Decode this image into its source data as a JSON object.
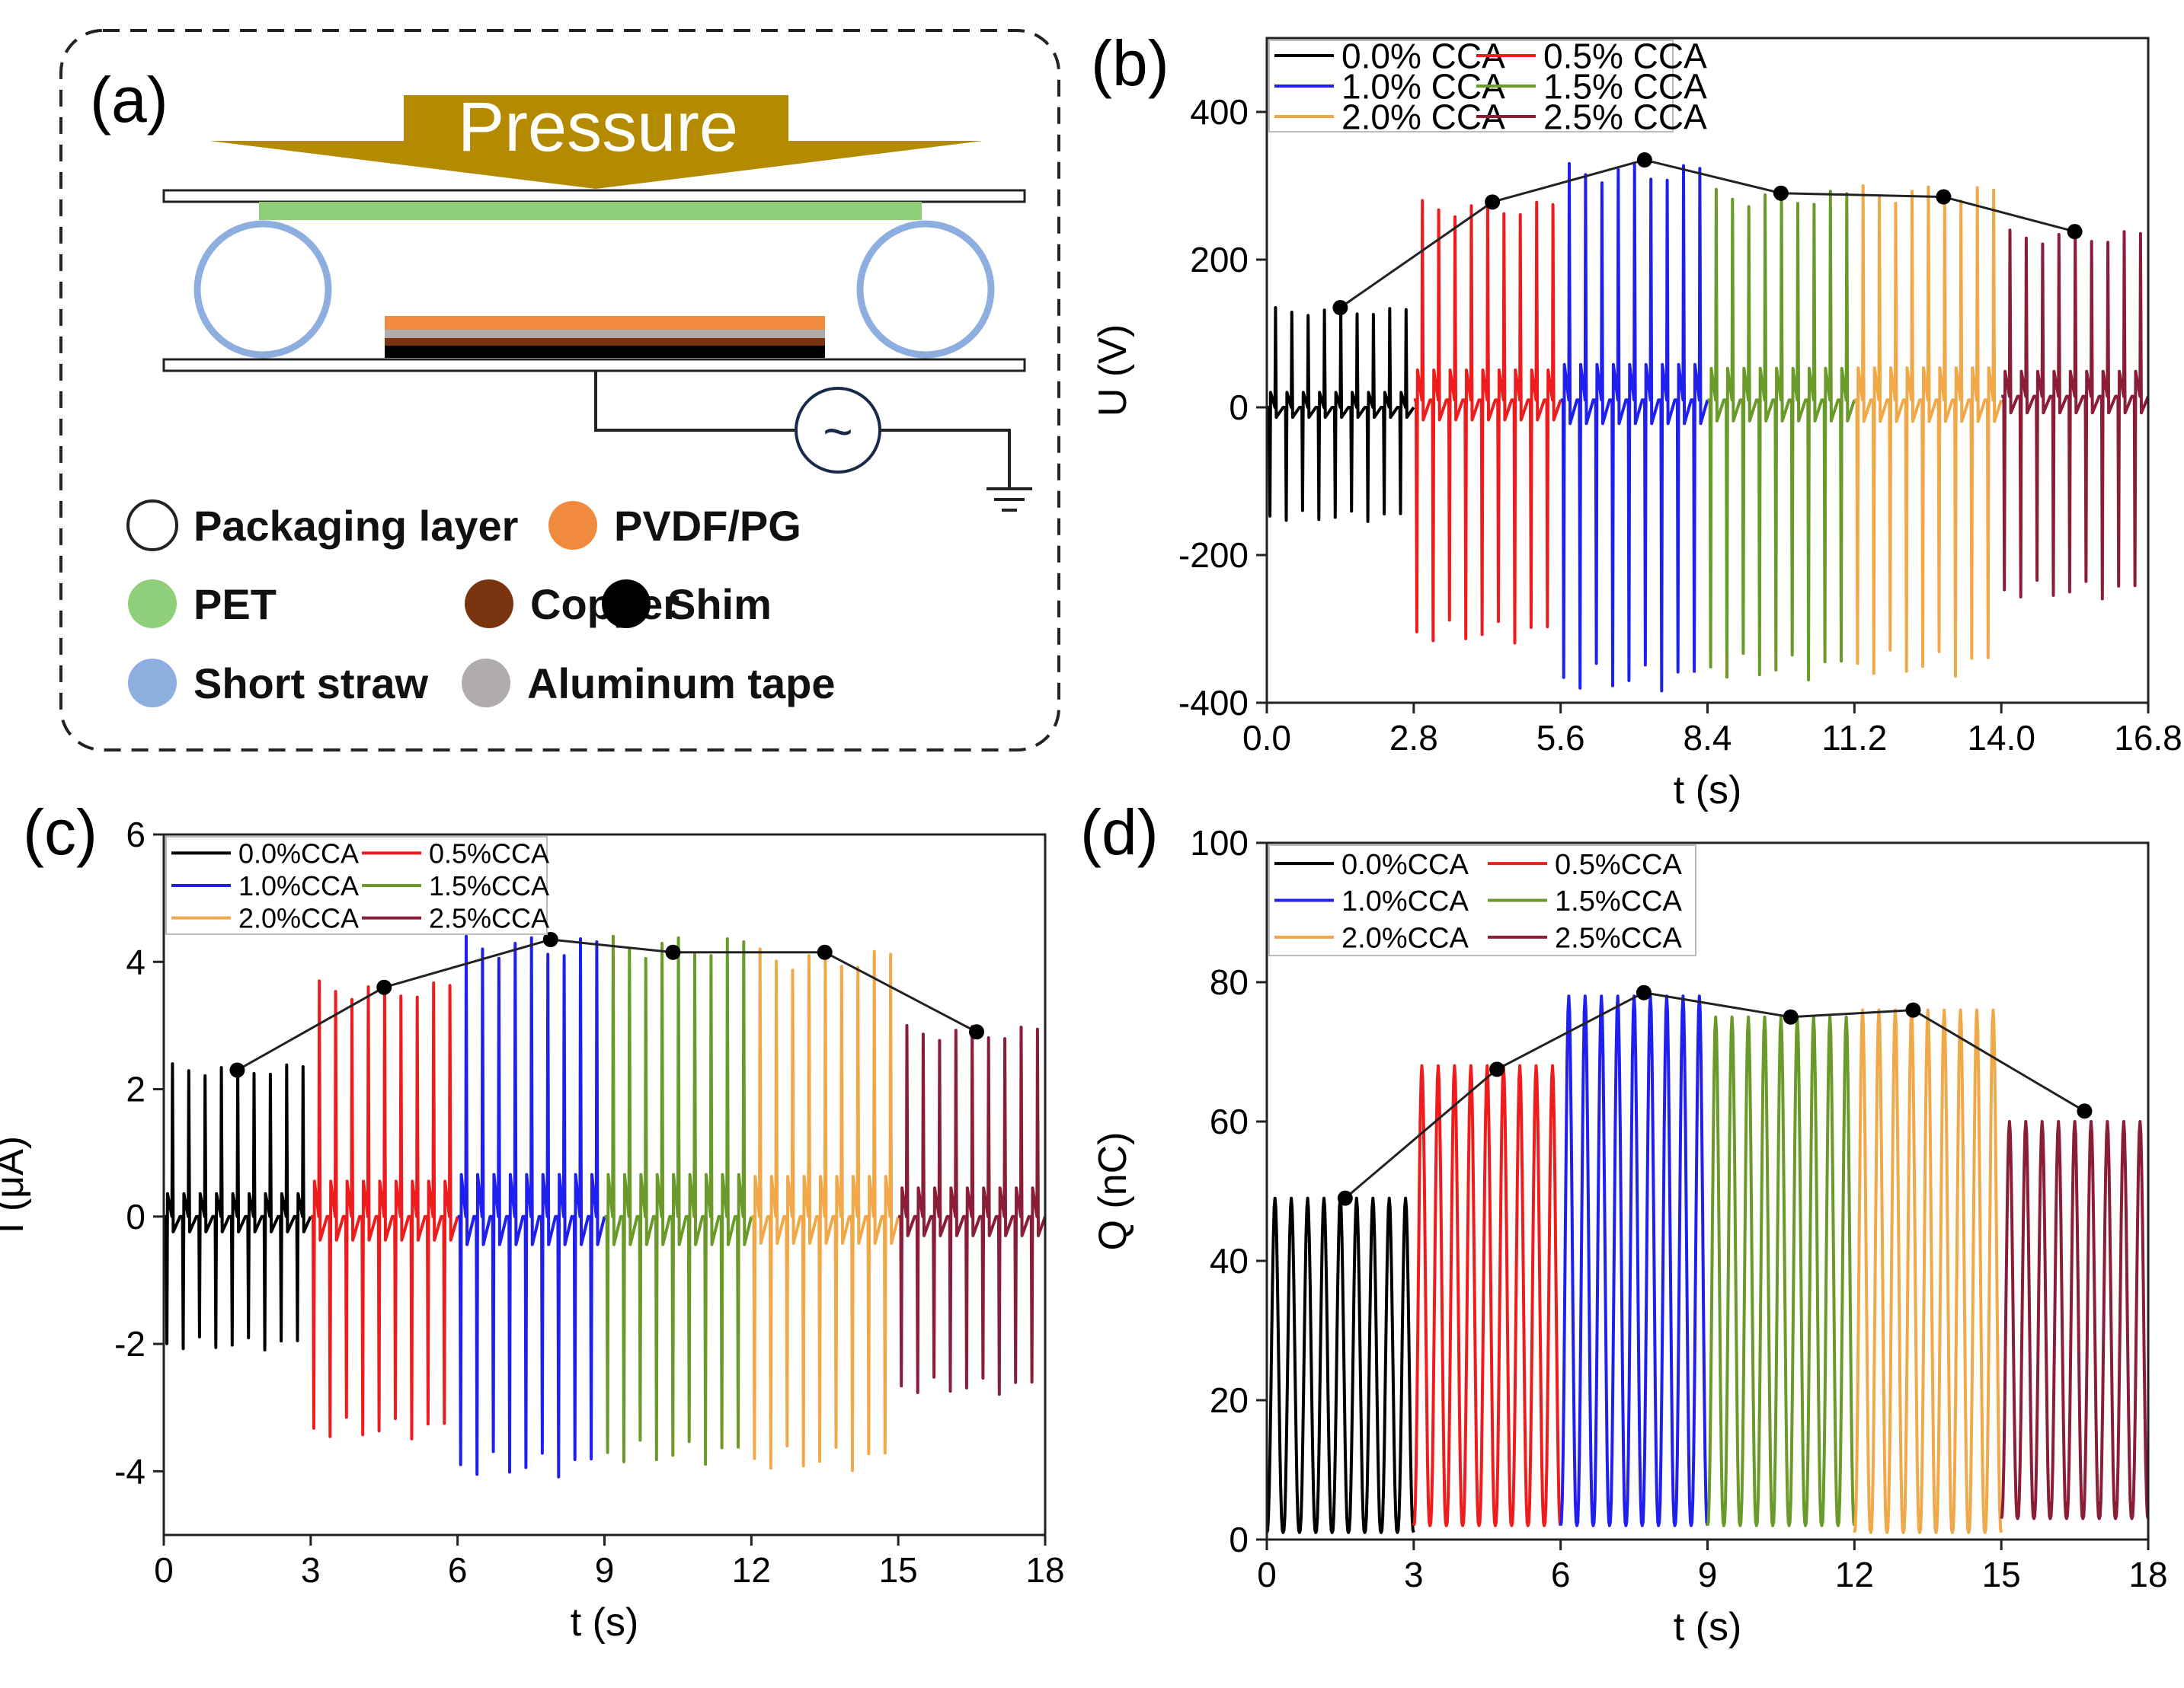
{
  "panel_a": {
    "panel_label": "(a)",
    "pressure_label": "Pressure",
    "source_symbol": "~",
    "legend": [
      {
        "label": "Packaging layer",
        "color": "#ffffff"
      },
      {
        "label": "PVDF/PG",
        "color": "#f08a3c"
      },
      {
        "label": "PET",
        "color": "#8fcf7a"
      },
      {
        "label": "Copper",
        "color": "#7a3510"
      },
      {
        "label": "Shim",
        "color": "#000000"
      },
      {
        "label": "Short straw",
        "color": "#8faee0"
      },
      {
        "label": "Aluminum tape",
        "color": "#b0acac"
      }
    ],
    "colors": {
      "arrow": "#b48a00",
      "pet": "#8fcf7a",
      "straw": "#8faee0",
      "pvdf": "#f08a3c",
      "aluminum": "#b0acac",
      "copper": "#7a3510",
      "shim": "#000000"
    }
  },
  "series_colors": [
    "#000000",
    "#ee1c1c",
    "#1f1fee",
    "#6a9a2a",
    "#f0a848",
    "#8a1e38"
  ],
  "chart_data": [
    {
      "id": "b",
      "panel_label": "(b)",
      "type": "line",
      "xlabel": "t (s)",
      "ylabel": "U (V)",
      "xlim": [
        0,
        16.8
      ],
      "ylim": [
        -400,
        500
      ],
      "xticks": [
        "0.0",
        "2.8",
        "5.6",
        "8.4",
        "11.2",
        "14.0",
        "16.8"
      ],
      "yticks": [
        "-400",
        "-200",
        "0",
        "200",
        "400"
      ],
      "legend": [
        "0.0% CCA",
        "0.5% CCA",
        "1.0% CCA",
        "1.5% CCA",
        "2.0% CCA",
        "2.5% CCA"
      ],
      "series": [
        {
          "name": "0.0% CCA",
          "t_range": [
            0,
            2.8
          ],
          "peak": 135,
          "trough": -155,
          "baseline": 0
        },
        {
          "name": "0.5% CCA",
          "t_range": [
            2.8,
            5.6
          ],
          "peak": 280,
          "trough": -320,
          "baseline": 10
        },
        {
          "name": "1.0% CCA",
          "t_range": [
            5.6,
            8.4
          ],
          "peak": 330,
          "trough": -385,
          "baseline": 10
        },
        {
          "name": "1.5% CCA",
          "t_range": [
            8.4,
            11.2
          ],
          "peak": 295,
          "trough": -370,
          "baseline": 10
        },
        {
          "name": "2.0% CCA",
          "t_range": [
            11.2,
            14.0
          ],
          "peak": 300,
          "trough": -365,
          "baseline": 10
        },
        {
          "name": "2.5% CCA",
          "t_range": [
            14.0,
            16.8
          ],
          "peak": 240,
          "trough": -260,
          "baseline": 15
        }
      ],
      "trend": {
        "x": [
          1.4,
          4.3,
          7.2,
          9.8,
          12.9,
          15.4
        ],
        "y": [
          135,
          278,
          335,
          290,
          285,
          238
        ]
      }
    },
    {
      "id": "c",
      "panel_label": "(c)",
      "type": "line",
      "xlabel": "t (s)",
      "ylabel": "I (μA)",
      "xlim": [
        0,
        18
      ],
      "ylim": [
        -5,
        6
      ],
      "xticks": [
        "0",
        "3",
        "6",
        "9",
        "12",
        "15",
        "18"
      ],
      "yticks": [
        "-4",
        "-2",
        "0",
        "2",
        "4",
        "6"
      ],
      "legend": [
        "0.0%CCA",
        "0.5%CCA",
        "1.0%CCA",
        "1.5%CCA",
        "2.0%CCA",
        "2.5%CCA"
      ],
      "series": [
        {
          "name": "0.0%CCA",
          "t_range": [
            0,
            3
          ],
          "peak": 2.4,
          "trough": -2.1,
          "baseline": 0
        },
        {
          "name": "0.5%CCA",
          "t_range": [
            3,
            6
          ],
          "peak": 3.7,
          "trough": -3.5,
          "baseline": 0
        },
        {
          "name": "1.0%CCA",
          "t_range": [
            6,
            9
          ],
          "peak": 4.4,
          "trough": -4.1,
          "baseline": 0
        },
        {
          "name": "1.5%CCA",
          "t_range": [
            9,
            12
          ],
          "peak": 4.4,
          "trough": -3.9,
          "baseline": 0
        },
        {
          "name": "2.0%CCA",
          "t_range": [
            12,
            15
          ],
          "peak": 4.2,
          "trough": -4.0,
          "baseline": 0
        },
        {
          "name": "2.5%CCA",
          "t_range": [
            15,
            18
          ],
          "peak": 3.0,
          "trough": -2.8,
          "baseline": 0
        }
      ],
      "trend": {
        "x": [
          1.5,
          4.5,
          7.9,
          10.4,
          13.5,
          16.6
        ],
        "y": [
          2.3,
          3.6,
          4.35,
          4.15,
          4.15,
          2.9
        ]
      }
    },
    {
      "id": "d",
      "panel_label": "(d)",
      "type": "line",
      "xlabel": "t (s)",
      "ylabel": "Q (nC)",
      "xlim": [
        0,
        18
      ],
      "ylim": [
        0,
        100
      ],
      "xticks": [
        "0",
        "3",
        "6",
        "9",
        "12",
        "15",
        "18"
      ],
      "yticks": [
        "0",
        "20",
        "40",
        "60",
        "80",
        "100"
      ],
      "legend": [
        "0.0%CCA",
        "0.5%CCA",
        "1.0%CCA",
        "1.5%CCA",
        "2.0%CCA",
        "2.5%CCA"
      ],
      "series": [
        {
          "name": "0.0%CCA",
          "t_range": [
            0,
            3
          ],
          "peak": 49,
          "trough": 1,
          "baseline": 1
        },
        {
          "name": "0.5%CCA",
          "t_range": [
            3,
            6
          ],
          "peak": 68,
          "trough": 2,
          "baseline": 2
        },
        {
          "name": "1.0%CCA",
          "t_range": [
            6,
            9
          ],
          "peak": 78,
          "trough": 2,
          "baseline": 2
        },
        {
          "name": "1.5%CCA",
          "t_range": [
            9,
            12
          ],
          "peak": 75,
          "trough": 2,
          "baseline": 2
        },
        {
          "name": "2.0%CCA",
          "t_range": [
            12,
            15
          ],
          "peak": 76,
          "trough": 1,
          "baseline": 1
        },
        {
          "name": "2.5%CCA",
          "t_range": [
            15,
            18
          ],
          "peak": 60,
          "trough": 3,
          "baseline": 3
        }
      ],
      "trend": {
        "x": [
          1.6,
          4.7,
          7.7,
          10.7,
          13.2,
          16.7
        ],
        "y": [
          49,
          67.5,
          78.5,
          75,
          76,
          61.5
        ]
      }
    }
  ]
}
